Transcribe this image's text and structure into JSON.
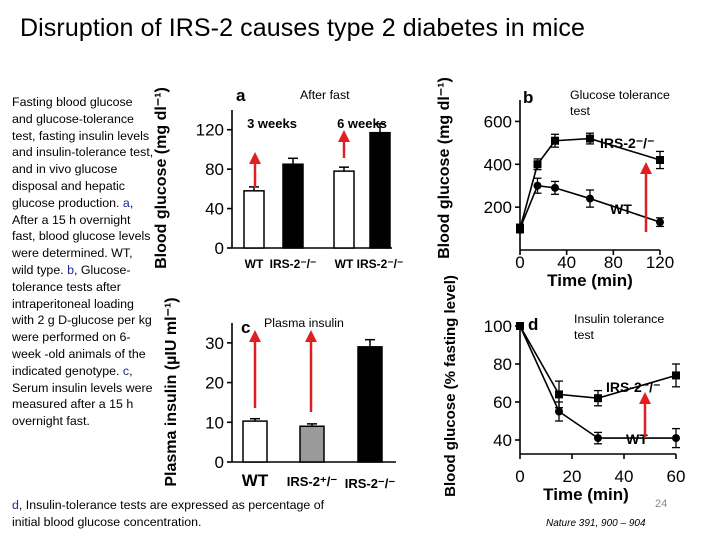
{
  "title": "Disruption of IRS-2 causes type 2 diabetes in mice",
  "legend": {
    "intro": "Fasting blood glucose and glucose-tolerance test, fasting insulin levels and insulin-tolerance test, and in vivo glucose disposal and hepatic glucose production.",
    "a_key": "a",
    "a_text": ", After a 15 h overnight fast, blood glucose levels were determined. WT, wild type.",
    "b_key": "b",
    "b_text": ", Glucose-tolerance tests after intraperitoneal loading with 2 g D-glucose per kg were performed on 6-week -old animals of the indicated genotype.",
    "c_key": "c",
    "c_text": ", Serum insulin levels were measured after a 15 h overnight fast.",
    "d_key": "d",
    "d_text": ", Insulin-tolerance tests are expressed as percentage of initial blood glucose concentration."
  },
  "notes": {
    "a": "After fast",
    "b": "Glucose tolerance test",
    "c": "Plasma insulin",
    "d": "Insulin tolerance test"
  },
  "citation": "Nature 391, 900 – 904",
  "page_number": "24",
  "colors": {
    "arrow": "#e02020",
    "legend_key": "#1a2a9a"
  },
  "chart_data": [
    {
      "panel": "a",
      "type": "bar",
      "ylabel": "Blood glucose (mg dl⁻¹)",
      "ylim": [
        0,
        140
      ],
      "yticks": [
        0,
        40,
        80,
        120
      ],
      "groups": [
        "3 weeks",
        "6 weeks"
      ],
      "categories": [
        "WT",
        "IRS-2⁻/⁻",
        "WT",
        "IRS-2⁻/⁻"
      ],
      "values": [
        58,
        85,
        78,
        117
      ],
      "errors": [
        4,
        6,
        4,
        9
      ],
      "fills": [
        "white",
        "black",
        "white",
        "black"
      ]
    },
    {
      "panel": "b",
      "type": "line",
      "xlabel": "Time (min)",
      "ylabel": "Blood glucose (mg dl⁻¹)",
      "xlim": [
        0,
        120
      ],
      "ylim": [
        0,
        700
      ],
      "xticks": [
        0,
        40,
        80,
        120
      ],
      "yticks": [
        200,
        400,
        600
      ],
      "series": [
        {
          "name": "IRS-2⁻/⁻",
          "x": [
            0,
            15,
            30,
            60,
            120
          ],
          "y": [
            100,
            400,
            510,
            520,
            420
          ],
          "err": [
            20,
            25,
            30,
            25,
            40
          ]
        },
        {
          "name": "WT",
          "x": [
            0,
            15,
            30,
            60,
            120
          ],
          "y": [
            100,
            300,
            290,
            240,
            130
          ],
          "err": [
            20,
            35,
            30,
            40,
            20
          ]
        }
      ]
    },
    {
      "panel": "c",
      "type": "bar",
      "ylabel": "Plasma insulin (µIU ml⁻¹)",
      "ylim": [
        0,
        35
      ],
      "yticks": [
        0,
        10,
        20,
        30
      ],
      "categories": [
        "WT",
        "IRS-2⁺/⁻",
        "IRS-2⁻/⁻"
      ],
      "values": [
        10.3,
        9.0,
        29.0
      ],
      "errors": [
        0.6,
        0.6,
        1.8
      ],
      "fills": [
        "white",
        "gray",
        "black"
      ]
    },
    {
      "panel": "d",
      "type": "line",
      "xlabel": "Time (min)",
      "ylabel": "Blood glucose (% fasting level)",
      "xlim": [
        0,
        60
      ],
      "ylim": [
        40,
        100
      ],
      "xticks": [
        0,
        20,
        40,
        60
      ],
      "yticks": [
        40,
        60,
        80,
        100
      ],
      "series": [
        {
          "name": "IRS-2⁻/⁻",
          "x": [
            0,
            15,
            30,
            60
          ],
          "y": [
            100,
            64,
            62,
            74
          ],
          "err": [
            0,
            7,
            4,
            6
          ]
        },
        {
          "name": "WT",
          "x": [
            0,
            15,
            30,
            60
          ],
          "y": [
            100,
            55,
            41,
            41
          ],
          "err": [
            0,
            5,
            3,
            5
          ]
        }
      ]
    }
  ]
}
